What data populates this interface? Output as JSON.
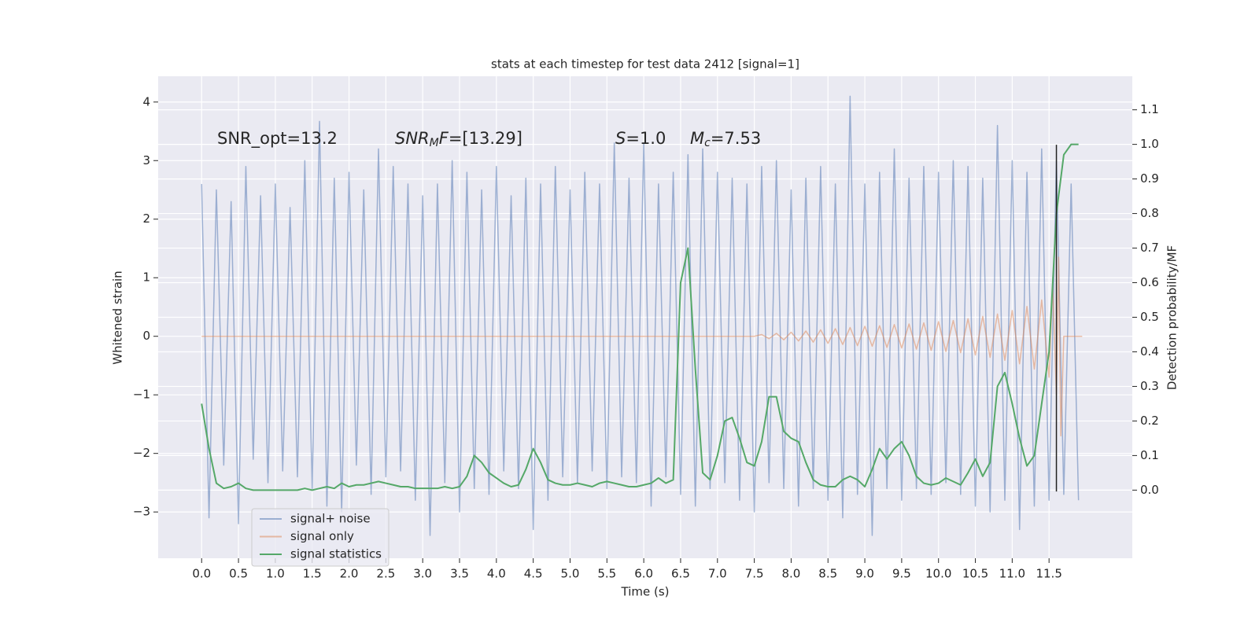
{
  "chart_data": {
    "type": "line",
    "title": "stats at each timestep for test data 2412 [signal=1]",
    "xlabel": "Time (s)",
    "ylabel": "Whitened strain",
    "y2label": "Detection probability/MF",
    "annotations": [
      [
        {
          "text": "SNR_opt=13.2"
        }
      ],
      [
        {
          "text": "SNR",
          "italic": true
        },
        {
          "text": "M",
          "italic": true,
          "sub": true
        },
        {
          "text": "F",
          "italic": true
        },
        {
          "text": "=[13.29]"
        }
      ],
      [
        {
          "text": "S",
          "italic": true
        },
        {
          "text": "=1.0"
        }
      ],
      [
        {
          "text": "M",
          "italic": true
        },
        {
          "text": "c",
          "italic": true,
          "sub": true
        },
        {
          "text": "=7.53"
        }
      ]
    ],
    "xlim": [
      -0.59,
      12.63
    ],
    "ylim": [
      -3.79,
      4.44
    ],
    "y2lim": [
      -0.197,
      1.197
    ],
    "xticks": [
      {
        "value": 0,
        "label": "0.0"
      },
      0.5,
      {
        "value": 1,
        "label": "1.0"
      },
      1.5,
      {
        "value": 2,
        "label": "2.0"
      },
      2.5,
      {
        "value": 3,
        "label": "3.0"
      },
      3.5,
      {
        "value": 4,
        "label": "4.0"
      },
      4.5,
      {
        "value": 5,
        "label": "5.0"
      },
      5.5,
      {
        "value": 6,
        "label": "6.0"
      },
      6.5,
      {
        "value": 7,
        "label": "7.0"
      },
      7.5,
      {
        "value": 8,
        "label": "8.0"
      },
      8.5,
      {
        "value": 9,
        "label": "9.0"
      },
      9.5,
      {
        "value": 10,
        "label": "10.0"
      },
      10.5,
      {
        "value": 11,
        "label": "11.0"
      },
      11.5
    ],
    "yticks": [
      {
        "value": -3,
        "label": "−3"
      },
      {
        "value": -2,
        "label": "−2"
      },
      {
        "value": -1,
        "label": "−1"
      },
      0,
      1,
      2,
      3,
      4
    ],
    "y2ticks": [
      {
        "value": 0,
        "label": "0.0"
      },
      0.1,
      0.2,
      0.3,
      0.4,
      0.5,
      0.6,
      0.7,
      0.8,
      0.9,
      {
        "value": 1,
        "label": "1.0"
      },
      1.1
    ],
    "grid": true,
    "legend": "lower left",
    "background": "#eaeaf2",
    "series": [
      {
        "name": "signal+ noise",
        "color": "#4c72b0",
        "opacity": 0.5,
        "x": [
          0,
          0.1,
          0.2,
          0.3,
          0.4,
          0.5,
          0.6,
          0.7,
          0.8,
          0.9,
          1,
          1.1,
          1.2,
          1.3,
          1.4,
          1.5,
          1.6,
          1.7,
          1.8,
          1.9,
          2,
          2.1,
          2.2,
          2.3,
          2.4,
          2.5,
          2.6,
          2.7,
          2.8,
          2.9,
          3,
          3.1,
          3.2,
          3.3,
          3.4,
          3.5,
          3.6,
          3.7,
          3.8,
          3.9,
          4,
          4.1,
          4.2,
          4.3,
          4.4,
          4.5,
          4.6,
          4.7,
          4.8,
          4.9,
          5,
          5.1,
          5.2,
          5.3,
          5.4,
          5.5,
          5.6,
          5.7,
          5.8,
          5.9,
          6,
          6.1,
          6.2,
          6.3,
          6.4,
          6.5,
          6.6,
          6.7,
          6.8,
          6.9,
          7,
          7.1,
          7.2,
          7.3,
          7.4,
          7.5,
          7.6,
          7.7,
          7.8,
          7.9,
          8,
          8.1,
          8.2,
          8.3,
          8.4,
          8.5,
          8.6,
          8.7,
          8.8,
          8.9,
          9,
          9.1,
          9.2,
          9.3,
          9.4,
          9.5,
          9.6,
          9.7,
          9.8,
          9.9,
          10,
          10.1,
          10.2,
          10.3,
          10.4,
          10.5,
          10.6,
          10.7,
          10.8,
          10.9,
          11,
          11.1,
          11.2,
          11.3,
          11.4,
          11.5,
          11.6,
          11.7,
          11.8,
          11.9
        ],
        "values": [
          2.6,
          -3.1,
          2.5,
          -2.2,
          2.3,
          -3.2,
          2.9,
          -2.1,
          2.4,
          -2.5,
          2.6,
          -2.3,
          2.2,
          -2.4,
          3.0,
          -2.6,
          3.67,
          -2.9,
          2.7,
          -3.0,
          2.8,
          -2.2,
          2.5,
          -2.7,
          3.2,
          -2.4,
          2.9,
          -2.3,
          2.6,
          -2.8,
          2.4,
          -3.4,
          2.6,
          -2.5,
          3.0,
          -3.0,
          2.8,
          -2.6,
          2.5,
          -2.7,
          2.9,
          -2.3,
          2.4,
          -2.6,
          2.7,
          -3.3,
          2.6,
          -2.8,
          2.9,
          -2.4,
          2.5,
          -2.5,
          2.8,
          -2.3,
          2.6,
          -2.6,
          3.3,
          -2.4,
          2.7,
          -2.5,
          3.3,
          -2.9,
          2.6,
          -2.4,
          2.8,
          -2.7,
          3.1,
          -2.9,
          3.2,
          -2.6,
          2.8,
          -2.5,
          2.7,
          -2.8,
          2.6,
          -3.0,
          2.9,
          -2.5,
          3.0,
          -2.6,
          2.5,
          -2.9,
          2.7,
          -2.6,
          2.9,
          -2.8,
          2.6,
          -3.1,
          4.1,
          -2.7,
          2.6,
          -3.4,
          2.8,
          -2.6,
          3.2,
          -2.8,
          2.7,
          -2.6,
          2.9,
          -2.7,
          2.8,
          -2.5,
          3.0,
          -2.7,
          2.9,
          -2.9,
          2.7,
          -3.0,
          3.6,
          -2.8,
          3.0,
          -3.3,
          2.8,
          -2.9,
          3.2,
          -2.8,
          3.0,
          -2.7,
          2.6,
          -2.8
        ]
      },
      {
        "name": "signal only",
        "color": "#dd8452",
        "opacity": 0.5,
        "x": [
          0,
          7.5,
          7.6,
          7.7,
          7.8,
          7.9,
          8,
          8.1,
          8.2,
          8.3,
          8.4,
          8.5,
          8.6,
          8.7,
          8.8,
          8.9,
          9,
          9.1,
          9.2,
          9.3,
          9.4,
          9.5,
          9.6,
          9.7,
          9.8,
          9.9,
          10,
          10.1,
          10.2,
          10.3,
          10.4,
          10.5,
          10.6,
          10.7,
          10.8,
          10.9,
          11,
          11.1,
          11.2,
          11.3,
          11.4,
          11.5,
          11.55,
          11.6,
          11.63,
          11.66,
          11.7,
          11.95
        ],
        "values": [
          0,
          0,
          0.03,
          -0.04,
          0.05,
          -0.06,
          0.07,
          -0.08,
          0.09,
          -0.1,
          0.11,
          -0.12,
          0.13,
          -0.14,
          0.15,
          -0.16,
          0.17,
          -0.17,
          0.18,
          -0.19,
          0.2,
          -0.2,
          0.21,
          -0.22,
          0.23,
          -0.24,
          0.25,
          -0.26,
          0.27,
          -0.28,
          0.3,
          -0.32,
          0.34,
          -0.36,
          0.38,
          -0.41,
          0.44,
          -0.47,
          0.51,
          -0.56,
          0.62,
          -0.7,
          0.85,
          -1.0,
          1.35,
          -1.7,
          0,
          0
        ]
      },
      {
        "name": "signal statistics",
        "color": "#55a868",
        "opacity": 1,
        "axis": "y2",
        "x": [
          0,
          0.1,
          0.2,
          0.3,
          0.4,
          0.5,
          0.6,
          0.7,
          0.8,
          0.9,
          1,
          1.1,
          1.2,
          1.3,
          1.4,
          1.5,
          1.6,
          1.7,
          1.8,
          1.9,
          2,
          2.1,
          2.2,
          2.3,
          2.4,
          2.5,
          2.6,
          2.7,
          2.8,
          2.9,
          3,
          3.1,
          3.2,
          3.3,
          3.4,
          3.5,
          3.6,
          3.7,
          3.8,
          3.9,
          4,
          4.1,
          4.2,
          4.3,
          4.4,
          4.5,
          4.6,
          4.7,
          4.8,
          4.9,
          5,
          5.1,
          5.2,
          5.3,
          5.4,
          5.5,
          5.6,
          5.7,
          5.8,
          5.9,
          6,
          6.1,
          6.2,
          6.3,
          6.4,
          6.5,
          6.6,
          6.7,
          6.8,
          6.9,
          7,
          7.1,
          7.2,
          7.3,
          7.4,
          7.5,
          7.6,
          7.7,
          7.8,
          7.9,
          8,
          8.1,
          8.2,
          8.3,
          8.4,
          8.5,
          8.6,
          8.7,
          8.8,
          8.9,
          9,
          9.1,
          9.2,
          9.3,
          9.4,
          9.5,
          9.6,
          9.7,
          9.8,
          9.9,
          10,
          10.1,
          10.2,
          10.3,
          10.4,
          10.5,
          10.6,
          10.7,
          10.8,
          10.9,
          11,
          11.1,
          11.2,
          11.3,
          11.4,
          11.5,
          11.6,
          11.7,
          11.8,
          11.9
        ],
        "values": [
          0.25,
          0.12,
          0.02,
          0.005,
          0.01,
          0.02,
          0.005,
          0,
          0,
          0,
          0,
          0,
          0,
          0,
          0.005,
          0,
          0.005,
          0.01,
          0.005,
          0.02,
          0.01,
          0.015,
          0.015,
          0.02,
          0.025,
          0.02,
          0.015,
          0.01,
          0.01,
          0.005,
          0.005,
          0.005,
          0.005,
          0.01,
          0.005,
          0.01,
          0.04,
          0.1,
          0.08,
          0.05,
          0.035,
          0.02,
          0.01,
          0.015,
          0.06,
          0.12,
          0.08,
          0.03,
          0.02,
          0.015,
          0.015,
          0.02,
          0.015,
          0.01,
          0.02,
          0.025,
          0.02,
          0.015,
          0.01,
          0.01,
          0.015,
          0.02,
          0.035,
          0.02,
          0.03,
          0.6,
          0.7,
          0.35,
          0.05,
          0.03,
          0.1,
          0.2,
          0.21,
          0.15,
          0.08,
          0.07,
          0.14,
          0.27,
          0.27,
          0.17,
          0.15,
          0.14,
          0.08,
          0.03,
          0.015,
          0.01,
          0.01,
          0.03,
          0.04,
          0.03,
          0.01,
          0.06,
          0.12,
          0.09,
          0.12,
          0.14,
          0.1,
          0.04,
          0.02,
          0.015,
          0.02,
          0.035,
          0.025,
          0.015,
          0.05,
          0.09,
          0.04,
          0.08,
          0.3,
          0.34,
          0.25,
          0.15,
          0.07,
          0.1,
          0.25,
          0.4,
          0.8,
          0.97,
          1.0,
          1.0
        ]
      }
    ],
    "marker_line": {
      "x": 11.6,
      "y": [
        -2.65,
        3.27
      ],
      "color": "#222222"
    }
  }
}
